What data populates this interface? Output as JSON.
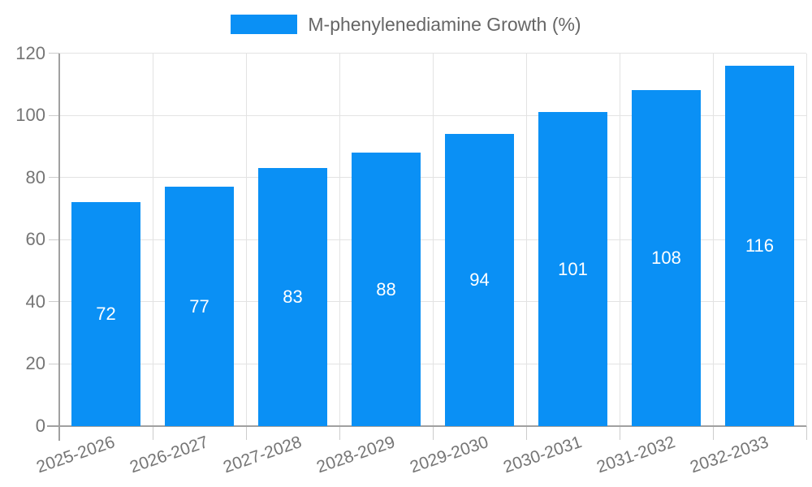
{
  "legend": {
    "label": "M-phenylenediamine Growth (%)"
  },
  "chart_data": {
    "type": "bar",
    "title": "M-phenylenediamine Growth (%)",
    "categories": [
      "2025-2026",
      "2026-2027",
      "2027-2028",
      "2028-2029",
      "2029-2030",
      "2030-2031",
      "2031-2032",
      "2032-2033"
    ],
    "values": [
      72,
      77,
      83,
      88,
      94,
      101,
      108,
      116
    ],
    "xlabel": "",
    "ylabel": "",
    "ylim": [
      0,
      120
    ],
    "yticks": [
      0,
      20,
      40,
      60,
      80,
      100,
      120
    ],
    "grid": true,
    "legend_position": "top-center",
    "x_label_rotation_deg": -19,
    "colors": {
      "bar": "#0a90f5",
      "legend_text": "#666666",
      "axis_text": "#757575",
      "grid_line": "#e3e3e3",
      "tick_line": "#cccccc",
      "axis_line": "#a0a0a0",
      "value_label": "#ffffff",
      "background": "#ffffff"
    }
  }
}
